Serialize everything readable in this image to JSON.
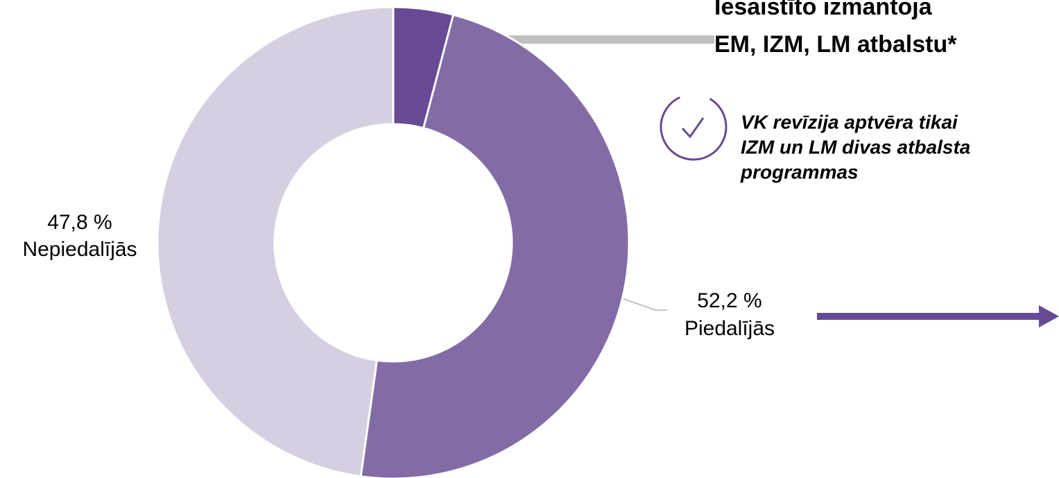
{
  "chart_data": {
    "type": "donut",
    "categories": [
      "Piedalījās",
      "Nepiedalījās"
    ],
    "values": [
      52.2,
      47.8
    ],
    "value_labels": [
      "52,2 %",
      "47,8 %"
    ],
    "colors": [
      "#836ca5",
      "#d6cfe1"
    ],
    "highlight": {
      "value": 4.1,
      "color": "#674a93"
    },
    "annotation": [
      "Iesaistīto izmantoja",
      "EM, IZM, LM atbalstu*"
    ],
    "note": [
      "VK revīzija aptvēra tikai",
      "IZM un LM divas atbalsta",
      "programmas"
    ]
  }
}
